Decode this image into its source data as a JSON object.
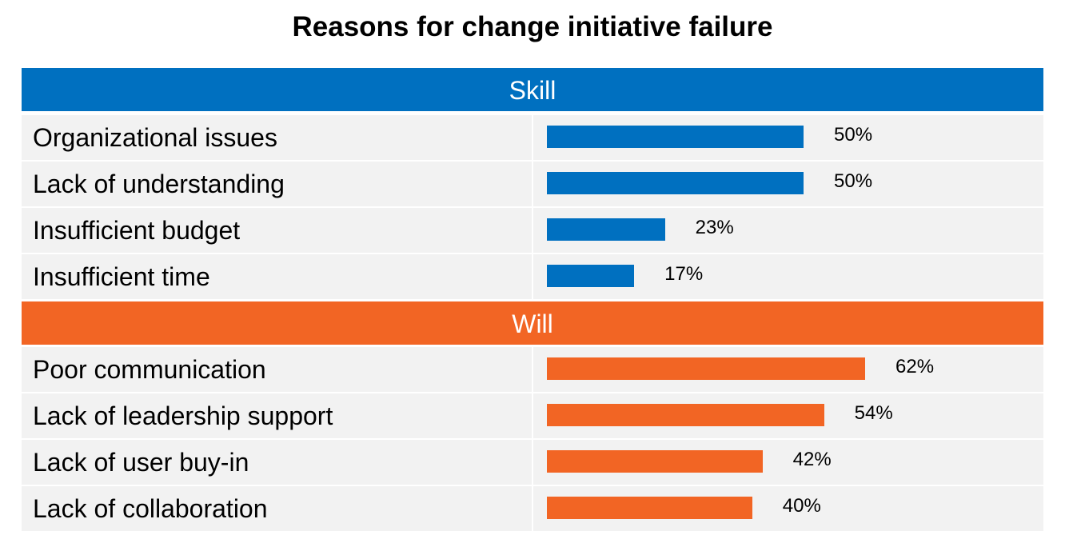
{
  "chart_data": {
    "type": "bar",
    "title": "Reasons for change initiative failure",
    "orientation": "horizontal",
    "groups": [
      {
        "name": "Skill",
        "color": "#0070c0",
        "items": [
          {
            "label": "Organizational issues",
            "value": 50,
            "value_label": "50%"
          },
          {
            "label": "Lack of understanding",
            "value": 50,
            "value_label": "50%"
          },
          {
            "label": "Insufficient budget",
            "value": 23,
            "value_label": "23%"
          },
          {
            "label": "Insufficient time",
            "value": 17,
            "value_label": "17%"
          }
        ]
      },
      {
        "name": "Will",
        "color": "#f26524",
        "items": [
          {
            "label": "Poor communication",
            "value": 62,
            "value_label": "62%"
          },
          {
            "label": "Lack of leadership support",
            "value": 54,
            "value_label": "54%"
          },
          {
            "label": "Lack of user buy-in",
            "value": 42,
            "value_label": "42%"
          },
          {
            "label": "Lack of collaboration",
            "value": 40,
            "value_label": "40%"
          }
        ]
      }
    ],
    "grid": false,
    "legend": "none"
  }
}
